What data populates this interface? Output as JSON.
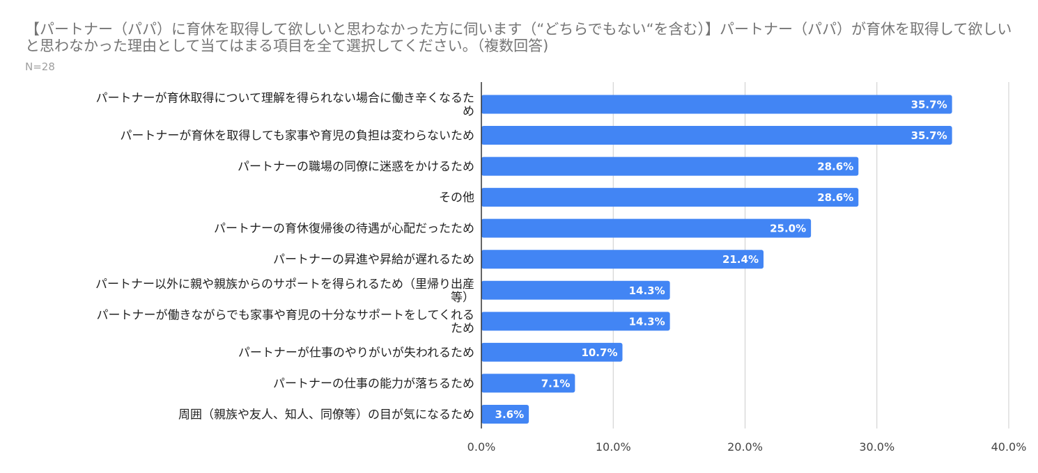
{
  "chart_data": {
    "type": "bar",
    "orientation": "horizontal",
    "title": "【パートナー（パパ）に育休を取得して欲しいと思わなかった方に伺います（“どちらでもない“を含む）】パートナー（パパ）が育休を取得して欲しいと思わなかった理由として当てはまる項目を全て選択してください。（複数回答)",
    "subtitle": "N=28",
    "categories": [
      [
        "パートナーが育休取得について理解を得られない場合に働き辛くなるた",
        "め"
      ],
      [
        "パートナーが育休を取得しても家事や育児の負担は変わらないため"
      ],
      [
        "パートナーの職場の同僚に迷惑をかけるため"
      ],
      [
        "その他"
      ],
      [
        "パートナーの育休復帰後の待遇が心配だったため"
      ],
      [
        "パートナーの昇進や昇給が遅れるため"
      ],
      [
        "パートナー以外に親や親族からのサポートを得られるため（里帰り出産",
        "等）"
      ],
      [
        "パートナーが働きながらでも家事や育児の十分なサポートをしてくれる",
        "ため"
      ],
      [
        "パートナーが仕事のやりがいが失われるため"
      ],
      [
        "パートナーの仕事の能力が落ちるため"
      ],
      [
        "周囲（親族や友人、知人、同僚等）の目が気になるため"
      ]
    ],
    "values": [
      35.7,
      35.7,
      28.6,
      28.6,
      25.0,
      21.4,
      14.3,
      14.3,
      10.7,
      7.1,
      3.6
    ],
    "value_labels": [
      "35.7%",
      "35.7%",
      "28.6%",
      "28.6%",
      "25.0%",
      "21.4%",
      "14.3%",
      "14.3%",
      "10.7%",
      "7.1%",
      "3.6%"
    ],
    "xlim": [
      0,
      40
    ],
    "x_ticks": [
      0,
      10,
      20,
      30,
      40
    ],
    "x_tick_labels": [
      "0.0%",
      "10.0%",
      "20.0%",
      "30.0%",
      "40.0%"
    ],
    "grid": true,
    "legend": "none",
    "bar_color": "#4285f4",
    "grid_color": "#cccccc",
    "axis_color": "#333333"
  }
}
